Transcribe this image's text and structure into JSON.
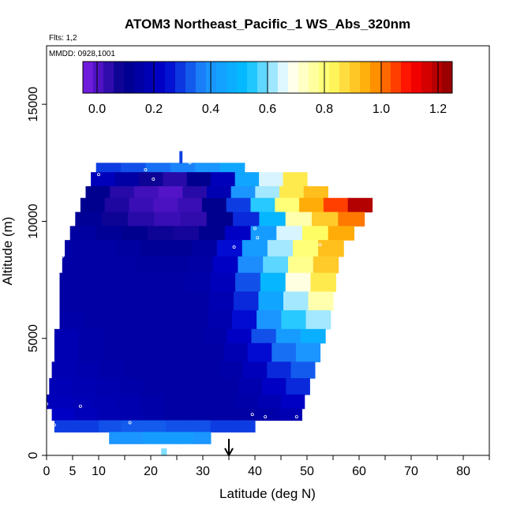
{
  "chart_data": {
    "type": "heatmap",
    "title": "ATOM3 Northeast_Pacific_1 WS_Abs_320nm",
    "subtitle_flights": "Flts: 1,2",
    "subtitle_dates": "MMDD: 0928,1001",
    "xlabel": "Latitude (deg N)",
    "ylabel": "Altitude (m)",
    "xlim": [
      0,
      85
    ],
    "ylim": [
      0,
      17500
    ],
    "x_ticks": [
      0,
      5,
      10,
      20,
      30,
      40,
      50,
      60,
      70,
      80
    ],
    "x_minor_ticks": [
      15,
      25,
      35,
      45,
      55,
      65,
      75,
      85
    ],
    "x_tick_labels": [
      "0",
      "5",
      "10",
      "20",
      "30",
      "40",
      "50",
      "60",
      "70",
      "80"
    ],
    "y_ticks": [
      0,
      5000,
      10000,
      15000
    ],
    "y_tick_labels": [
      "0",
      "5000",
      "10000",
      "15000"
    ],
    "colorbar": {
      "range": [
        -0.05,
        1.25
      ],
      "ticks": [
        0.0,
        0.2,
        0.4,
        0.6,
        0.8,
        1.0,
        1.2
      ],
      "tick_labels": [
        "0.0",
        "0.2",
        "0.4",
        "0.6",
        "0.8",
        "1.0",
        "1.2"
      ],
      "colors": [
        "#7f1fe6",
        "#00008b",
        "#0000cd",
        "#1e90ff",
        "#00bfff",
        "#ffffff",
        "#ffff66",
        "#ffa500",
        "#ff0000",
        "#8b0000"
      ]
    },
    "arrow_latitude": 35,
    "layers": [
      {
        "alt_lo": 12100,
        "alt_hi": 12500,
        "lat_min": 9.5,
        "lat_max": 38,
        "values": [
          0.3,
          0.32,
          0.35,
          0.37,
          0.4,
          0.45
        ]
      },
      {
        "alt_lo": 11500,
        "alt_hi": 12100,
        "lat_min": 8.5,
        "lat_max": 50,
        "values": [
          0.2,
          0.15,
          0.08,
          0.05,
          0.1,
          0.2,
          0.45,
          0.65,
          0.85
        ]
      },
      {
        "alt_lo": 11000,
        "alt_hi": 11500,
        "lat_min": 7.5,
        "lat_max": 54,
        "values": [
          0.1,
          0.05,
          0.02,
          0.0,
          0.05,
          0.18,
          0.4,
          0.62,
          0.85,
          0.92
        ]
      },
      {
        "alt_lo": 10400,
        "alt_hi": 11000,
        "lat_min": 6.5,
        "lat_max": 62.5,
        "values": [
          0.1,
          0.06,
          0.03,
          0.01,
          0.03,
          0.1,
          0.3,
          0.55,
          0.8,
          0.95,
          1.05,
          1.2
        ]
      },
      {
        "alt_lo": 9800,
        "alt_hi": 10400,
        "lat_min": 5.5,
        "lat_max": 61,
        "values": [
          0.12,
          0.08,
          0.05,
          0.03,
          0.04,
          0.1,
          0.28,
          0.5,
          0.75,
          0.9,
          1.0
        ]
      },
      {
        "alt_lo": 9200,
        "alt_hi": 9800,
        "lat_min": 4.5,
        "lat_max": 59,
        "values": [
          0.14,
          0.12,
          0.1,
          0.08,
          0.07,
          0.1,
          0.22,
          0.42,
          0.65,
          0.82,
          0.95
        ]
      },
      {
        "alt_lo": 8500,
        "alt_hi": 9200,
        "lat_min": 3.5,
        "lat_max": 57,
        "values": [
          0.15,
          0.15,
          0.14,
          0.12,
          0.12,
          0.14,
          0.25,
          0.42,
          0.62,
          0.8,
          0.92
        ]
      },
      {
        "alt_lo": 7800,
        "alt_hi": 8500,
        "lat_min": 3,
        "lat_max": 56,
        "values": [
          0.15,
          0.15,
          0.15,
          0.14,
          0.14,
          0.15,
          0.22,
          0.38,
          0.58,
          0.78,
          0.9
        ]
      },
      {
        "alt_lo": 7000,
        "alt_hi": 7800,
        "lat_min": 2.5,
        "lat_max": 55.5,
        "values": [
          0.15,
          0.15,
          0.15,
          0.15,
          0.15,
          0.16,
          0.2,
          0.32,
          0.5,
          0.7,
          0.85
        ]
      },
      {
        "alt_lo": 6200,
        "alt_hi": 7000,
        "lat_min": 2.5,
        "lat_max": 55,
        "values": [
          0.15,
          0.15,
          0.15,
          0.15,
          0.15,
          0.15,
          0.18,
          0.28,
          0.45,
          0.62,
          0.75
        ]
      },
      {
        "alt_lo": 5400,
        "alt_hi": 6200,
        "lat_min": 2.5,
        "lat_max": 54.5,
        "values": [
          0.16,
          0.15,
          0.15,
          0.15,
          0.15,
          0.15,
          0.17,
          0.25,
          0.4,
          0.55,
          0.62
        ]
      },
      {
        "alt_lo": 4800,
        "alt_hi": 5400,
        "lat_min": 1.5,
        "lat_max": 53.5,
        "values": [
          0.18,
          0.16,
          0.15,
          0.15,
          0.15,
          0.15,
          0.16,
          0.22,
          0.32,
          0.42,
          0.48
        ]
      },
      {
        "alt_lo": 4000,
        "alt_hi": 4800,
        "lat_min": 1.5,
        "lat_max": 52.5,
        "values": [
          0.18,
          0.16,
          0.15,
          0.15,
          0.15,
          0.15,
          0.15,
          0.18,
          0.25,
          0.35,
          0.4
        ]
      },
      {
        "alt_lo": 3300,
        "alt_hi": 4000,
        "lat_min": 1,
        "lat_max": 51.5,
        "values": [
          0.18,
          0.17,
          0.16,
          0.15,
          0.15,
          0.15,
          0.15,
          0.16,
          0.2,
          0.28,
          0.33
        ]
      },
      {
        "alt_lo": 2600,
        "alt_hi": 3300,
        "lat_min": 0.5,
        "lat_max": 50.5,
        "values": [
          0.19,
          0.18,
          0.17,
          0.16,
          0.15,
          0.15,
          0.15,
          0.15,
          0.17,
          0.22,
          0.28
        ]
      },
      {
        "alt_lo": 2000,
        "alt_hi": 2600,
        "lat_min": 0,
        "lat_max": 49.5,
        "values": [
          0.2,
          0.19,
          0.18,
          0.17,
          0.16,
          0.15,
          0.15,
          0.15,
          0.16,
          0.18,
          0.22
        ]
      },
      {
        "alt_lo": 1500,
        "alt_hi": 2000,
        "lat_min": 1,
        "lat_max": 49,
        "values": [
          0.22,
          0.2,
          0.18,
          0.17,
          0.16,
          0.15,
          0.15,
          0.15,
          0.15,
          0.16,
          0.18
        ]
      },
      {
        "alt_lo": 1000,
        "alt_hi": 1500,
        "lat_min": 1.5,
        "lat_max": 40,
        "values": [
          0.3,
          0.3,
          0.32,
          0.33,
          0.33,
          0.32,
          0.32,
          0.3,
          0.3
        ]
      },
      {
        "alt_lo": 500,
        "alt_hi": 1000,
        "lat_min": 12,
        "lat_max": 31.5,
        "values": [
          0.4,
          0.4,
          0.42,
          0.42,
          0.42,
          0.4
        ]
      },
      {
        "alt_lo": 0,
        "alt_hi": 300,
        "lat_min": 22,
        "lat_max": 23,
        "values": [
          0.6
        ]
      },
      {
        "alt_lo": 12500,
        "alt_hi": 13000,
        "lat_min": 25.5,
        "lat_max": 26,
        "values": [
          0.3
        ]
      }
    ],
    "markers": [
      {
        "x": 0,
        "y": 2200
      },
      {
        "x": 1.5,
        "y": 1300
      },
      {
        "x": 3,
        "y": 8500
      },
      {
        "x": 6.5,
        "y": 2100
      },
      {
        "x": 10,
        "y": 12000
      },
      {
        "x": 16,
        "y": 1400
      },
      {
        "x": 19,
        "y": 12200
      },
      {
        "x": 20.5,
        "y": 11800
      },
      {
        "x": 25,
        "y": 12900
      },
      {
        "x": 27.5,
        "y": 12500
      },
      {
        "x": 36,
        "y": 8900
      },
      {
        "x": 40,
        "y": 9700
      },
      {
        "x": 40.5,
        "y": 9300
      },
      {
        "x": 39.5,
        "y": 1750
      },
      {
        "x": 42,
        "y": 1650
      },
      {
        "x": 48,
        "y": 1650
      },
      {
        "x": 52.5,
        "y": 9000
      },
      {
        "x": 62,
        "y": 11100
      }
    ]
  }
}
